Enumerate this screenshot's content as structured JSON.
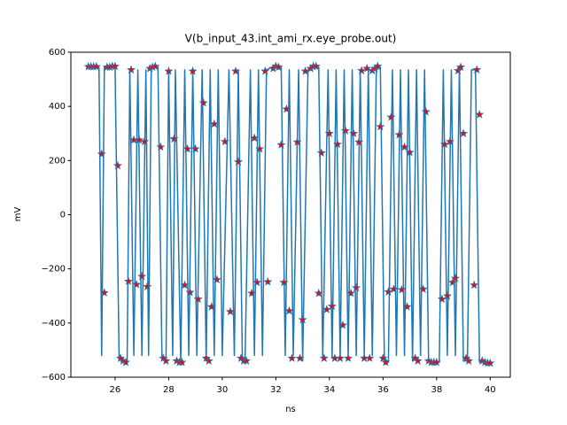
{
  "chart_data": {
    "type": "line",
    "title": "V(b_input_43.int_ami_rx.eye_probe.out)",
    "x_label": "ns",
    "y_label": "mV",
    "xlim": [
      24.35,
      40.75
    ],
    "ylim": [
      -600,
      600
    ],
    "xticks": [
      26,
      28,
      30,
      32,
      34,
      36,
      38,
      40
    ],
    "yticks": [
      {
        "value": -600,
        "label": "−600"
      },
      {
        "value": -400,
        "label": "−400"
      },
      {
        "value": -200,
        "label": "−200"
      },
      0,
      200,
      400,
      600
    ],
    "series": [
      {
        "type": "line",
        "color": "#1f77b4",
        "x": [
          25.0,
          25.4,
          25.5,
          25.6,
          26.0,
          26.15,
          26.25,
          26.45,
          26.55,
          26.7,
          26.85,
          27.0,
          27.15,
          27.25,
          27.35,
          27.6,
          27.75,
          27.9,
          28.0,
          28.15,
          28.25,
          28.45,
          28.6,
          28.75,
          28.9,
          29.05,
          29.25,
          29.4,
          29.55,
          29.7,
          29.85,
          30.0,
          30.25,
          30.45,
          30.6,
          30.75,
          30.85,
          31.05,
          31.2,
          31.35,
          31.5,
          31.65,
          31.85,
          32.2,
          32.35,
          32.5,
          32.65,
          32.85,
          33.0,
          33.2,
          33.35,
          33.6,
          33.75,
          33.95,
          34.1,
          34.25,
          34.4,
          34.55,
          34.7,
          34.85,
          35.0,
          35.15,
          35.3,
          35.45,
          35.6,
          35.75,
          35.9,
          36.05,
          36.2,
          36.35,
          36.5,
          36.65,
          36.8,
          36.95,
          37.1,
          37.25,
          37.4,
          37.55,
          37.7,
          37.9,
          38.1,
          38.25,
          38.4,
          38.55,
          38.7,
          38.85,
          39.0,
          39.15,
          39.3,
          39.45,
          39.6,
          40.0
        ],
        "values": [
          545,
          545,
          -520,
          545,
          545,
          -530,
          -545,
          -545,
          535,
          -520,
          535,
          -520,
          535,
          -520,
          545,
          545,
          -530,
          -540,
          535,
          -520,
          535,
          -545,
          535,
          -520,
          535,
          -520,
          535,
          -540,
          535,
          -520,
          535,
          -520,
          535,
          -520,
          535,
          -530,
          -540,
          535,
          -520,
          535,
          -520,
          535,
          545,
          545,
          -520,
          535,
          -520,
          535,
          -540,
          535,
          545,
          545,
          -530,
          535,
          -530,
          535,
          -530,
          535,
          -530,
          535,
          -520,
          535,
          -520,
          535,
          -520,
          535,
          545,
          -530,
          -545,
          535,
          -520,
          535,
          -520,
          535,
          -540,
          535,
          -520,
          535,
          -540,
          -545,
          -545,
          535,
          -520,
          535,
          -520,
          545,
          -540,
          -540,
          535,
          535,
          -545,
          -545
        ]
      },
      {
        "type": "scatter",
        "marker": "star",
        "color": "#ff0000",
        "edgecolor": "#1f77b4",
        "x": [
          25.0,
          25.1,
          25.2,
          25.3,
          25.5,
          25.6,
          25.7,
          25.8,
          25.9,
          26.0,
          26.1,
          26.2,
          26.3,
          26.4,
          26.5,
          26.6,
          26.7,
          26.8,
          26.9,
          27.0,
          27.1,
          27.2,
          27.3,
          27.4,
          27.5,
          27.7,
          27.8,
          27.9,
          28.0,
          28.2,
          28.3,
          28.4,
          28.5,
          28.6,
          28.7,
          28.8,
          28.9,
          29.0,
          29.1,
          29.3,
          29.4,
          29.5,
          29.6,
          29.7,
          29.8,
          30.1,
          30.3,
          30.5,
          30.6,
          30.7,
          30.8,
          30.9,
          31.1,
          31.2,
          31.3,
          31.4,
          31.6,
          31.7,
          31.9,
          32.0,
          32.1,
          32.2,
          32.3,
          32.4,
          32.5,
          32.6,
          32.8,
          32.9,
          33.0,
          33.1,
          33.3,
          33.4,
          33.5,
          33.6,
          33.7,
          33.8,
          33.9,
          34.0,
          34.1,
          34.2,
          34.3,
          34.4,
          34.5,
          34.6,
          34.7,
          34.8,
          34.9,
          35.0,
          35.1,
          35.2,
          35.3,
          35.4,
          35.5,
          35.6,
          35.7,
          35.8,
          35.9,
          36.0,
          36.1,
          36.2,
          36.3,
          36.4,
          36.6,
          36.7,
          36.8,
          36.9,
          37.0,
          37.2,
          37.3,
          37.5,
          37.6,
          37.7,
          37.8,
          37.9,
          38.0,
          38.2,
          38.3,
          38.4,
          38.5,
          38.6,
          38.7,
          38.8,
          38.9,
          39.0,
          39.1,
          39.2,
          39.4,
          39.5,
          39.6,
          39.7,
          39.8,
          39.9,
          40.0
        ],
        "values": [
          547,
          547,
          547,
          547,
          224,
          -288,
          545,
          545,
          548,
          548,
          181,
          -530,
          -540,
          -545,
          -246,
          535,
          276,
          -258,
          276,
          -228,
          270,
          -266,
          540,
          545,
          548,
          250,
          -530,
          -540,
          530,
          280,
          -540,
          -545,
          -545,
          -260,
          243,
          -287,
          530,
          243,
          -312,
          413,
          -530,
          -540,
          -340,
          335,
          -240,
          270,
          -358,
          530,
          195,
          -530,
          -540,
          -540,
          -290,
          283,
          -250,
          243,
          530,
          -248,
          540,
          548,
          545,
          258,
          -250,
          390,
          -355,
          -530,
          268,
          -530,
          -388,
          530,
          540,
          548,
          548,
          -290,
          228,
          -530,
          -350,
          300,
          -338,
          -530,
          260,
          -530,
          -408,
          310,
          -530,
          -290,
          300,
          -270,
          268,
          532,
          -530,
          540,
          -530,
          532,
          540,
          548,
          325,
          -530,
          -545,
          -285,
          360,
          -275,
          295,
          -277,
          250,
          -340,
          230,
          -530,
          -540,
          -275,
          380,
          -540,
          -545,
          -545,
          -545,
          -312,
          260,
          -300,
          270,
          -250,
          -235,
          532,
          545,
          300,
          -530,
          -540,
          -260,
          535,
          370,
          -540,
          -545,
          -548,
          -548
        ]
      }
    ]
  }
}
